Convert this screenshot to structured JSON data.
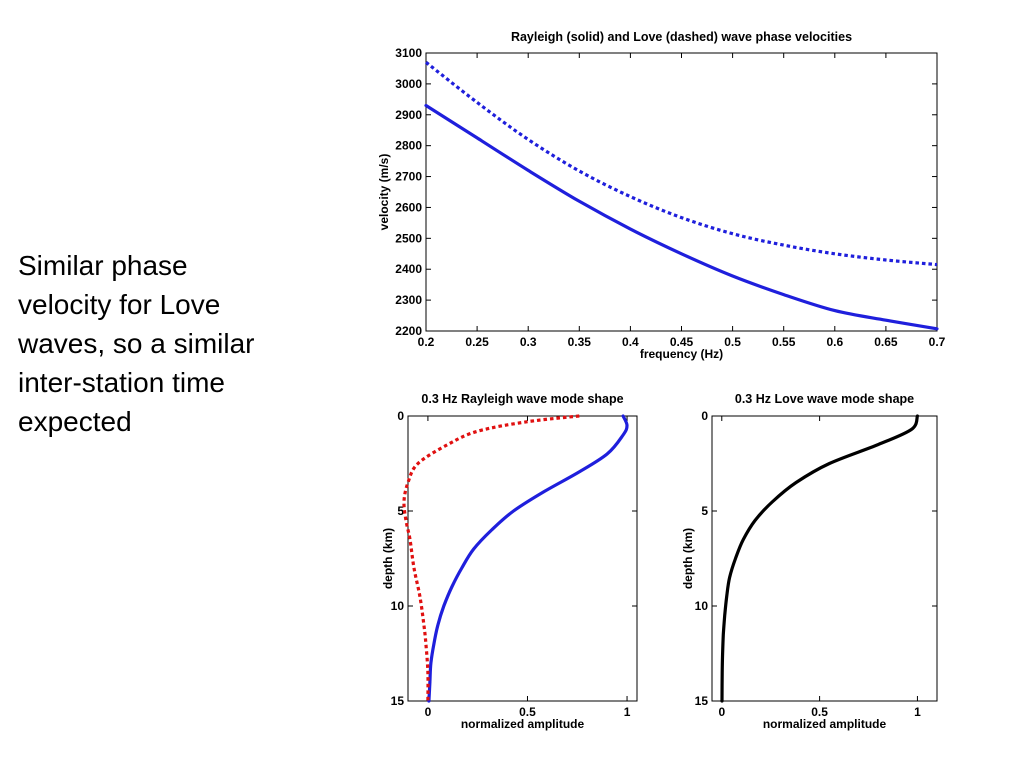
{
  "slide_text": [
    "Similar phase",
    "velocity for Love",
    "waves, so a similar",
    "inter-station time",
    "expected"
  ],
  "chart_data": [
    {
      "type": "line",
      "title": "Rayleigh (solid) and Love (dashed) wave phase velocities",
      "xlabel": "frequency (Hz)",
      "ylabel": "velocity (m/s)",
      "xlim": [
        0.2,
        0.7
      ],
      "ylim": [
        2200,
        3100
      ],
      "xticks": [
        "0.2",
        "0.25",
        "0.3",
        "0.35",
        "0.4",
        "0.45",
        "0.5",
        "0.55",
        "0.6",
        "0.65",
        "0.7"
      ],
      "yticks": [
        "2200",
        "2300",
        "2400",
        "2500",
        "2600",
        "2700",
        "2800",
        "2900",
        "3000",
        "3100"
      ],
      "grid": false,
      "series": [
        {
          "style": "solid",
          "color": "#1f1fdc",
          "x": [
            0.2,
            0.25,
            0.3,
            0.35,
            0.4,
            0.45,
            0.5,
            0.55,
            0.6,
            0.65,
            0.7
          ],
          "y": [
            2930,
            2825,
            2720,
            2620,
            2530,
            2450,
            2378,
            2318,
            2266,
            2235,
            2207
          ]
        },
        {
          "style": "dotted",
          "color": "#1f1fdc",
          "x": [
            0.2,
            0.25,
            0.3,
            0.35,
            0.4,
            0.45,
            0.5,
            0.55,
            0.6,
            0.65,
            0.7
          ],
          "y": [
            3070,
            2940,
            2820,
            2718,
            2635,
            2567,
            2515,
            2478,
            2450,
            2430,
            2415
          ]
        }
      ]
    },
    {
      "type": "line",
      "title": "0.3 Hz Rayleigh wave mode shape",
      "xlabel": "normalized amplitude",
      "ylabel": "depth (km)",
      "xlim": [
        -0.1,
        1.05
      ],
      "ylim": [
        0,
        15
      ],
      "y_reversed": true,
      "xticks": [
        "0",
        "0.5",
        "1"
      ],
      "yticks": [
        "0",
        "5",
        "10",
        "15"
      ],
      "series": [
        {
          "style": "solid",
          "color": "#1f1fdc",
          "x": [
            0.98,
            1.0,
            0.98,
            0.9,
            0.75,
            0.58,
            0.43,
            0.32,
            0.23,
            0.17,
            0.12,
            0.08,
            0.05,
            0.03,
            0.015,
            0.01,
            0.005
          ],
          "y": [
            0,
            0.5,
            1,
            2,
            3,
            4,
            5,
            6,
            7,
            8,
            9,
            10,
            11,
            12,
            13,
            14,
            15
          ]
        },
        {
          "style": "dotted",
          "color": "#e01010",
          "x": [
            0.76,
            0.5,
            0.25,
            0.1,
            -0.05,
            -0.1,
            -0.12,
            -0.11,
            -0.09,
            -0.07,
            -0.04,
            -0.02,
            -0.01,
            0,
            0
          ],
          "y": [
            0,
            0.3,
            0.8,
            1.5,
            2.5,
            3.5,
            4.5,
            5.5,
            6.5,
            8,
            9.5,
            11,
            12,
            13.5,
            15
          ]
        }
      ]
    },
    {
      "type": "line",
      "title": "0.3 Hz Love wave mode shape",
      "xlabel": "normalized amplitude",
      "ylabel": "depth (km)",
      "xlim": [
        -0.05,
        1.1
      ],
      "ylim": [
        0,
        15
      ],
      "y_reversed": true,
      "xticks": [
        "0",
        "0.5",
        "1"
      ],
      "yticks": [
        "0",
        "5",
        "10",
        "15"
      ],
      "series": [
        {
          "style": "solid",
          "color": "#000000",
          "x": [
            1.0,
            0.97,
            0.8,
            0.55,
            0.38,
            0.26,
            0.17,
            0.11,
            0.07,
            0.04,
            0.025,
            0.015,
            0.008,
            0.004,
            0.002,
            0.001
          ],
          "y": [
            0,
            0.7,
            1.5,
            2.5,
            3.5,
            4.5,
            5.5,
            6.5,
            7.5,
            8.5,
            9.5,
            10.5,
            11.5,
            12.5,
            13.5,
            15
          ]
        }
      ]
    }
  ]
}
